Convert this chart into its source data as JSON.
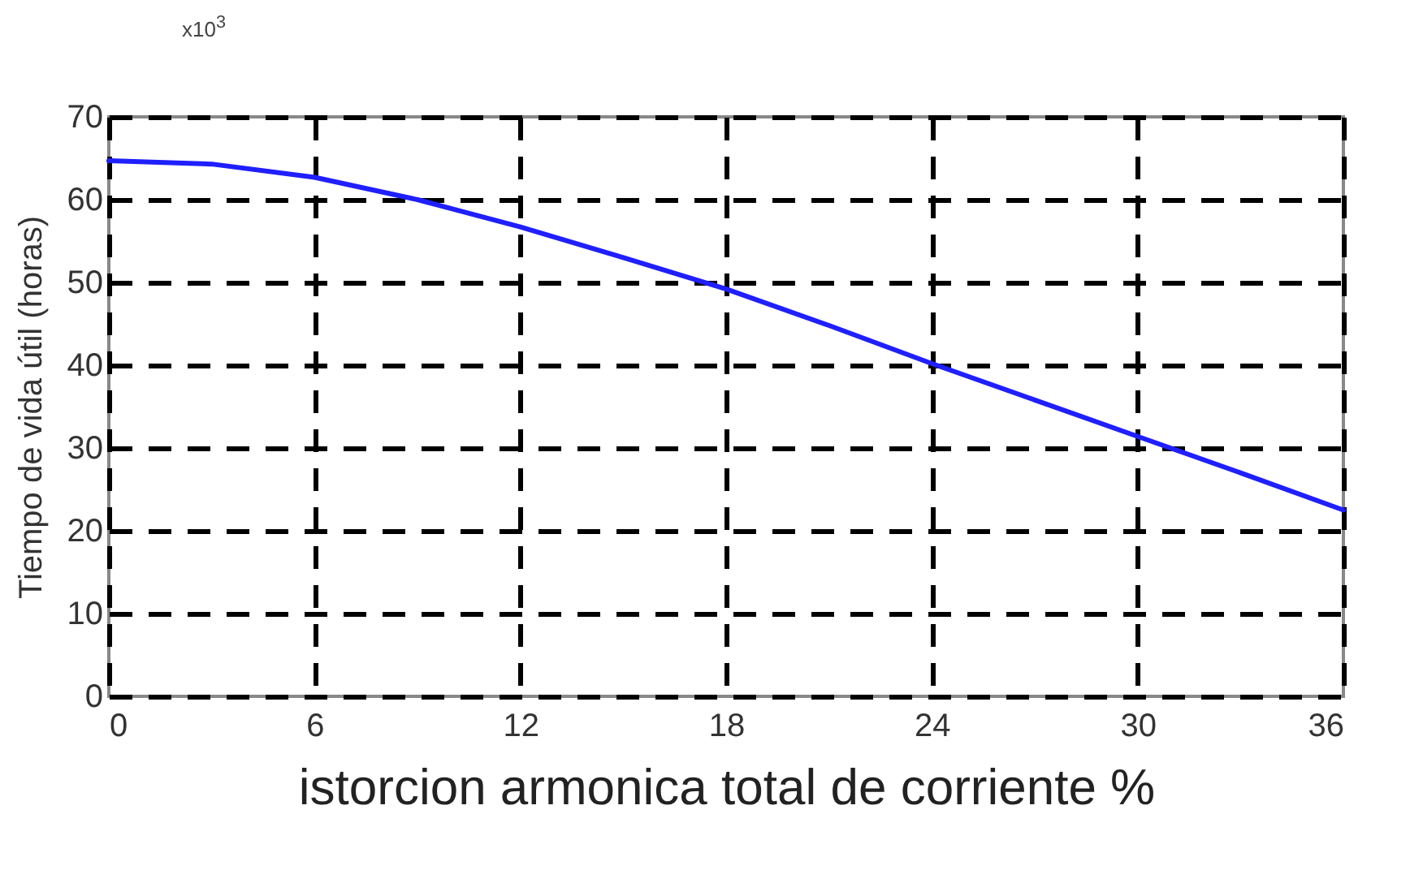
{
  "chart_data": {
    "type": "line",
    "xlabel": "istorcion armonica total de corriente %",
    "ylabel": "Tiempo de vida útil (horas)",
    "annotations": [
      "x10$^{3}$"
    ],
    "x": [
      0,
      3,
      6,
      9,
      12,
      15,
      18,
      21,
      24,
      27,
      30,
      33,
      36
    ],
    "series": [
      {
        "color": "#1f1fff",
        "values": [
          64.7,
          64.3,
          62.7,
          60,
          56.7,
          53,
          49.2,
          44.8,
          40.2,
          35.8,
          31.4,
          27,
          22.5
        ]
      }
    ],
    "xlim": [
      0,
      36
    ],
    "xticks": [
      0,
      6,
      12,
      18,
      24,
      30,
      36
    ],
    "ylim": [
      0,
      70
    ],
    "yticks": [
      0,
      10,
      20,
      30,
      40,
      50,
      60,
      70
    ],
    "grid": true,
    "line_style": "solid",
    "marker": "none"
  }
}
